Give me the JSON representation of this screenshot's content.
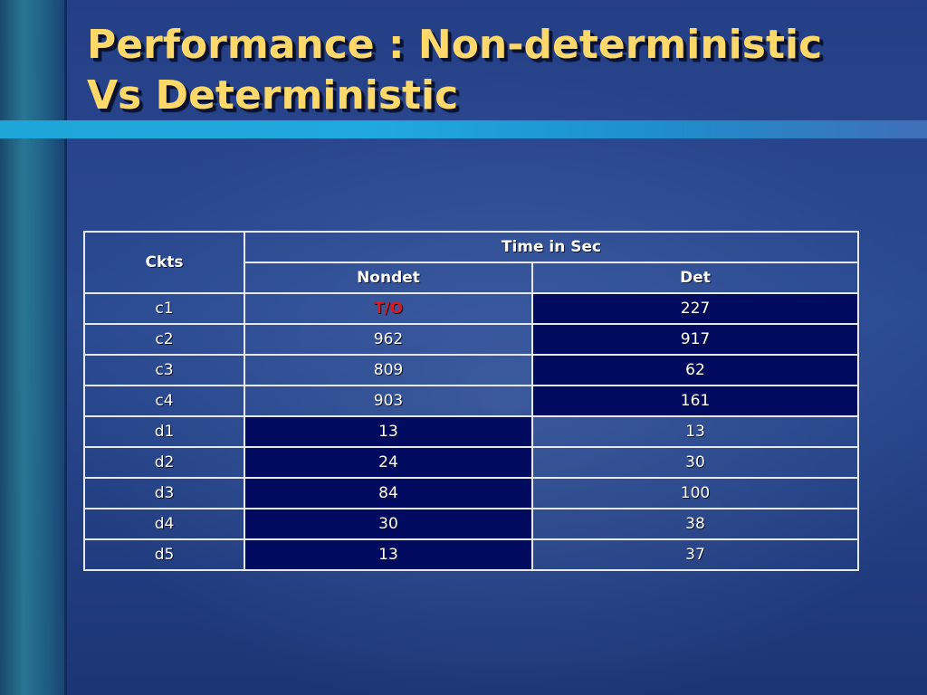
{
  "slide": {
    "title_line1": "Performance : Non-deterministic",
    "title_line2": "Vs Deterministic"
  },
  "table": {
    "header_ckts": "Ckts",
    "header_group": "Time in Sec",
    "header_nondet": "Nondet",
    "header_det": "Det",
    "rows": [
      {
        "ckt": "c1",
        "nondet": "T/O",
        "det": "227"
      },
      {
        "ckt": "c2",
        "nondet": "962",
        "det": "917"
      },
      {
        "ckt": "c3",
        "nondet": "809",
        "det": "62"
      },
      {
        "ckt": "c4",
        "nondet": "903",
        "det": "161"
      },
      {
        "ckt": "d1",
        "nondet": "13",
        "det": "13"
      },
      {
        "ckt": "d2",
        "nondet": "24",
        "det": "30"
      },
      {
        "ckt": "d3",
        "nondet": "84",
        "det": "100"
      },
      {
        "ckt": "d4",
        "nondet": "30",
        "det": "38"
      },
      {
        "ckt": "d5",
        "nondet": "13",
        "det": "37"
      }
    ]
  },
  "colors": {
    "title": "#ffd86a",
    "highlight_cell": "#000a5e",
    "timeout_text": "#e0161d",
    "accent_bar": "#1fa6d8"
  }
}
